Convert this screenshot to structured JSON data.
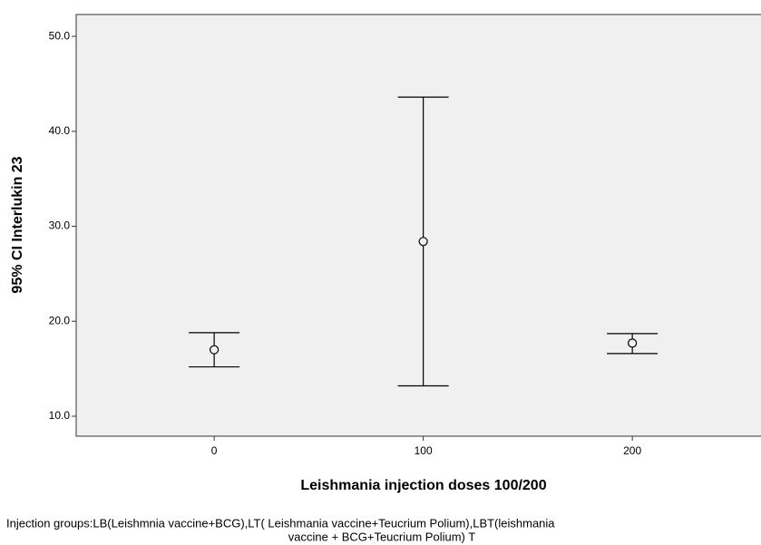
{
  "chart_data": {
    "type": "errorbar",
    "xlabel": "Leishmania injection doses 100/200",
    "ylabel": "95% CI Interlukin 23",
    "x": [
      0,
      100,
      200
    ],
    "values": [
      17.0,
      28.4,
      17.7
    ],
    "lower": [
      15.2,
      13.2,
      16.6
    ],
    "upper": [
      18.8,
      43.6,
      18.7
    ],
    "xlim": [
      -66,
      270
    ],
    "ylim": [
      7.9,
      52.3
    ],
    "xticks": [
      0,
      100,
      200
    ],
    "yticks": [
      {
        "value": 10,
        "label": "10.0"
      },
      {
        "value": 20,
        "label": "20.0"
      },
      {
        "value": 30,
        "label": "30.0"
      },
      {
        "value": 40,
        "label": "40.0"
      },
      {
        "value": 50,
        "label": "50.0"
      }
    ],
    "plot_background": "#f0f0f0",
    "color": "#000000",
    "footnote": [
      "Injection groups:LB(Leishmnia vaccine+BCG),LT( Leishmania vaccine+Teucrium Polium),LBT(leishmania",
      "vaccine + BCG+Teucrium Polium)   T"
    ]
  }
}
